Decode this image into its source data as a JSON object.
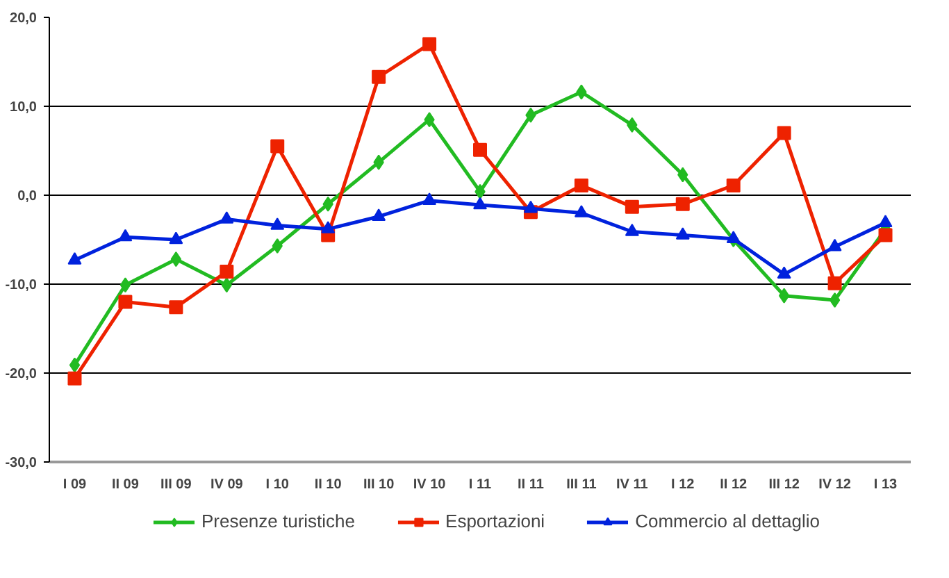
{
  "chart_data": {
    "type": "line",
    "categories": [
      "I 09",
      "II 09",
      "III 09",
      "IV 09",
      "I 10",
      "II 10",
      "III 10",
      "IV 10",
      "I 11",
      "II 11",
      "III 11",
      "IV 11",
      "I 12",
      "II 12",
      "III 12",
      "IV 12",
      "I 13"
    ],
    "series": [
      {
        "name": "Presenze turistiche",
        "color": "#22bb22",
        "marker": "diamond",
        "values": [
          -19.1,
          -10.1,
          -7.2,
          -10.1,
          -5.7,
          -1.0,
          3.7,
          8.5,
          0.4,
          9.0,
          11.6,
          7.9,
          2.3,
          -5.0,
          -11.3,
          -11.8,
          -3.8
        ]
      },
      {
        "name": "Esportazioni",
        "color": "#ee2200",
        "marker": "square",
        "values": [
          -20.6,
          -12.0,
          -12.6,
          -8.6,
          5.5,
          -4.5,
          13.3,
          17.0,
          5.1,
          -1.9,
          1.1,
          -1.3,
          -1.0,
          1.1,
          7.0,
          -9.9,
          -4.5
        ]
      },
      {
        "name": "Commercio al dettaglio",
        "color": "#0022dd",
        "marker": "triangle",
        "values": [
          -7.3,
          -4.7,
          -5.0,
          -2.7,
          -3.4,
          -3.8,
          -2.4,
          -0.6,
          -1.1,
          -1.5,
          -2.0,
          -4.1,
          -4.5,
          -4.9,
          -8.9,
          -5.8,
          -3.1
        ]
      }
    ],
    "ylim": [
      -30,
      20
    ],
    "yticks": [
      {
        "value": -30,
        "label": "-30,0"
      },
      {
        "value": -20,
        "label": "-20,0"
      },
      {
        "value": -10,
        "label": "-10,0"
      },
      {
        "value": 0,
        "label": "0,0"
      },
      {
        "value": 10,
        "label": "10,0"
      },
      {
        "value": 20,
        "label": "20,0"
      }
    ],
    "grid": "y",
    "legend": "bottom"
  }
}
